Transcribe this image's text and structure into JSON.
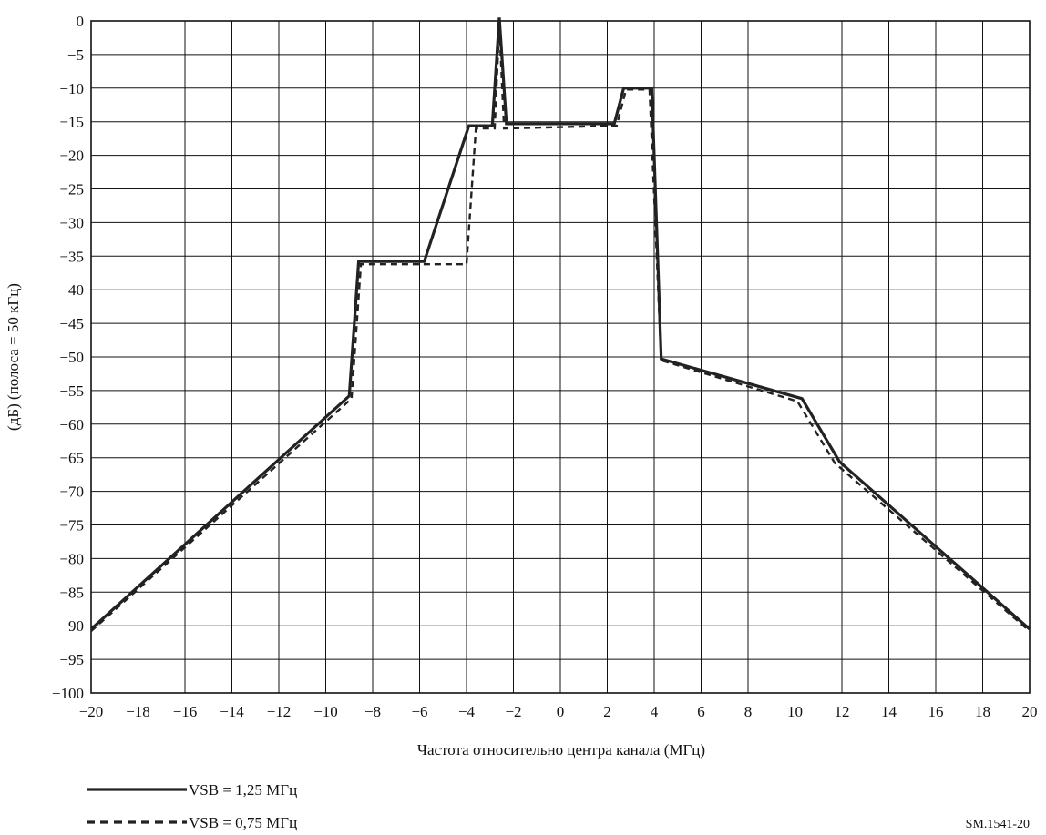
{
  "chart_data": {
    "type": "line",
    "xlabel": "Частота относительно центра канала (МГц)",
    "ylabel": "(дБ) (полоса = 50 кГц)",
    "xlim": [
      -20,
      20
    ],
    "ylim": [
      -100,
      0
    ],
    "xticks": [
      -20,
      -18,
      -16,
      -14,
      -12,
      -10,
      -8,
      -6,
      -4,
      -2,
      0,
      2,
      4,
      6,
      8,
      10,
      12,
      14,
      16,
      18,
      20
    ],
    "yticks": [
      0,
      -5,
      -10,
      -15,
      -20,
      -25,
      -30,
      -35,
      -40,
      -45,
      -50,
      -55,
      -60,
      -65,
      -70,
      -75,
      -80,
      -85,
      -90,
      -95,
      -100
    ],
    "grid": true,
    "legend_position": "bottom-left",
    "figure_id": "SM.1541-20",
    "series": [
      {
        "name": "VSB = 1,25 МГц",
        "style": "solid",
        "color": "#222222",
        "points": [
          [
            -20,
            -90.5
          ],
          [
            -9,
            -55.8
          ],
          [
            -8.6,
            -35.8
          ],
          [
            -5.8,
            -35.8
          ],
          [
            -3.9,
            -15.6
          ],
          [
            -2.9,
            -15.6
          ],
          [
            -2.6,
            0.5
          ],
          [
            -2.3,
            -15.3
          ],
          [
            2.3,
            -15.3
          ],
          [
            2.7,
            -10.0
          ],
          [
            3.9,
            -10.0
          ],
          [
            4.3,
            -50.3
          ],
          [
            10.3,
            -56.2
          ],
          [
            11.9,
            -65.6
          ],
          [
            20,
            -90.5
          ]
        ]
      },
      {
        "name": "VSB = 0,75 МГц",
        "style": "dashed",
        "color": "#222222",
        "points": [
          [
            -20,
            -90.8
          ],
          [
            -8.9,
            -56.2
          ],
          [
            -8.5,
            -36.2
          ],
          [
            -4.0,
            -36.2
          ],
          [
            -3.6,
            -16.0
          ],
          [
            -2.8,
            -16.0
          ],
          [
            -2.6,
            -0.5
          ],
          [
            -2.4,
            -16.0
          ],
          [
            2.4,
            -15.6
          ],
          [
            2.8,
            -10.2
          ],
          [
            3.8,
            -10.2
          ],
          [
            4.3,
            -50.5
          ],
          [
            10.1,
            -56.6
          ],
          [
            11.7,
            -65.8
          ],
          [
            20,
            -90.8
          ]
        ]
      }
    ]
  }
}
